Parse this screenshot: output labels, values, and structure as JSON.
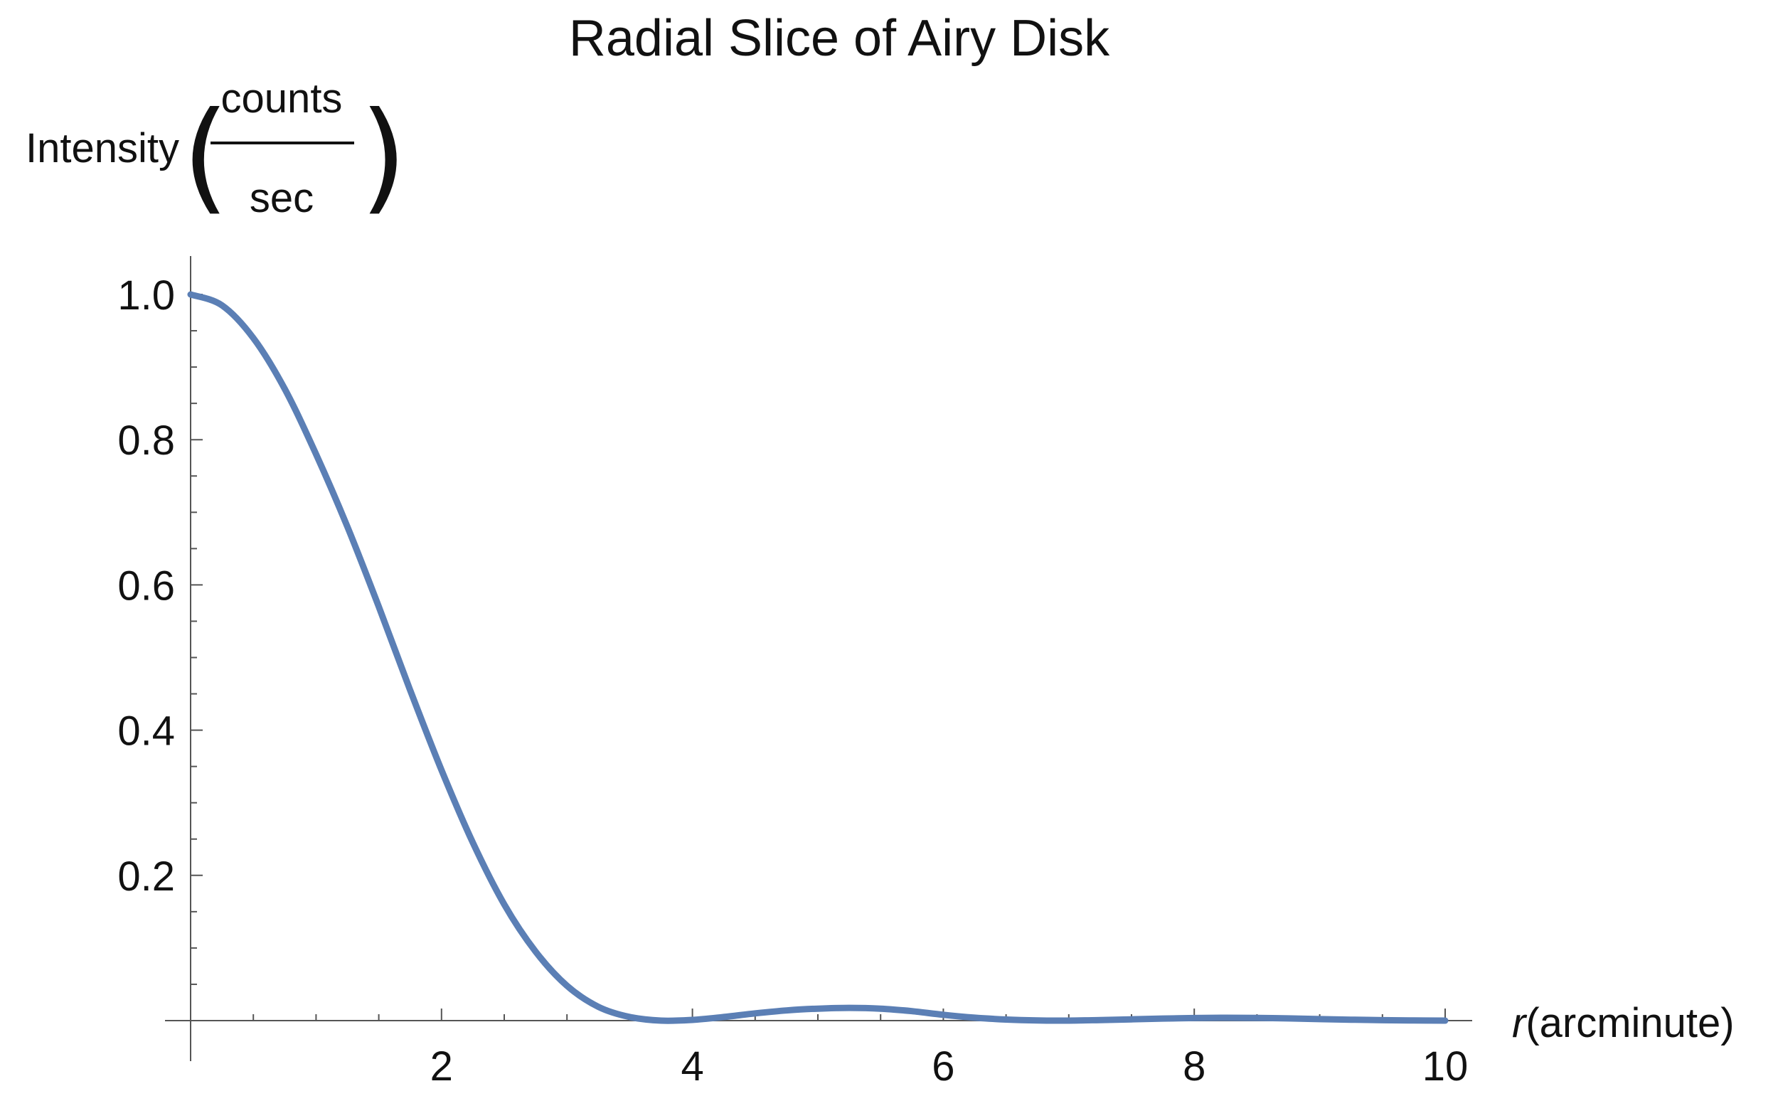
{
  "chart_data": {
    "type": "line",
    "title": "Radial Slice of Airy Disk",
    "xlabel": {
      "var": "r",
      "unit": "(arcminute)"
    },
    "ylabel": {
      "text": "Intensity",
      "numerator": "counts",
      "denominator": "sec"
    },
    "xlim": [
      0,
      10
    ],
    "ylim": [
      0,
      1.05
    ],
    "x_ticks": [
      2,
      4,
      6,
      8,
      10
    ],
    "x_tick_labels": [
      "2",
      "4",
      "6",
      "8",
      "10"
    ],
    "y_ticks": [
      0.2,
      0.4,
      0.6,
      0.8,
      1.0
    ],
    "y_tick_labels": [
      "0.2",
      "0.4",
      "0.6",
      "0.8",
      "1.0"
    ],
    "grid": false,
    "series": [
      {
        "color": "#5b7fb5",
        "x": [
          0,
          0.25,
          0.5,
          0.75,
          1.0,
          1.25,
          1.5,
          1.75,
          2.0,
          2.25,
          2.5,
          2.75,
          3.0,
          3.25,
          3.5,
          3.75,
          4.0,
          4.25,
          4.5,
          4.75,
          5.0,
          5.25,
          5.5,
          5.75,
          6.0,
          6.25,
          6.5,
          6.75,
          7.0,
          7.25,
          7.5,
          7.75,
          8.0,
          8.25,
          8.5,
          8.75,
          9.0,
          9.25,
          9.5,
          9.75,
          10.0
        ],
        "y": [
          1.0,
          0.985,
          0.94,
          0.87,
          0.78,
          0.68,
          0.57,
          0.455,
          0.345,
          0.245,
          0.16,
          0.095,
          0.048,
          0.019,
          0.005,
          0.0,
          0.001,
          0.005,
          0.01,
          0.014,
          0.0165,
          0.0175,
          0.0165,
          0.013,
          0.008,
          0.004,
          0.0015,
          0.0002,
          0.0,
          0.0008,
          0.0018,
          0.0028,
          0.0035,
          0.0039,
          0.0037,
          0.003,
          0.0021,
          0.0013,
          0.0006,
          0.0002,
          0.0
        ]
      }
    ]
  }
}
